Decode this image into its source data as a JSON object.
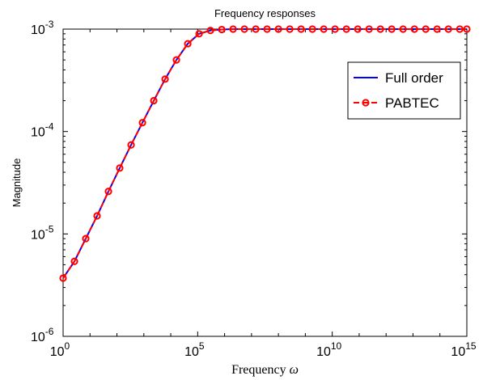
{
  "chart_data": {
    "type": "line",
    "title": "Frequency responses",
    "xlabel": "Frequency",
    "xlabel_symbol": "ω",
    "ylabel": "Magnitude",
    "xscale": "log",
    "yscale": "log",
    "xlim": [
      1,
      1000000000000000.0
    ],
    "ylim": [
      1e-06,
      0.001
    ],
    "x_ticks": [
      {
        "base": "10",
        "exp": "0"
      },
      {
        "base": "10",
        "exp": "5"
      },
      {
        "base": "10",
        "exp": "10"
      },
      {
        "base": "10",
        "exp": "15"
      }
    ],
    "y_ticks": [
      {
        "base": "10",
        "exp": "-6"
      },
      {
        "base": "10",
        "exp": "-5"
      },
      {
        "base": "10",
        "exp": "-4"
      },
      {
        "base": "10",
        "exp": "-3"
      }
    ],
    "grid": false,
    "legend_position": "upper-right",
    "x": [
      1,
      2.64,
      6.95,
      18.3,
      48.3,
      127.0,
      336.0,
      886.0,
      2340.0,
      6160.0,
      16200.0,
      42800.0,
      113000.0,
      298000.0,
      785000.0,
      2070000.0,
      5460000.0,
      14400000.0,
      37900000.0,
      100000000.0,
      264000000.0,
      695000000.0,
      1830000000.0,
      4830000000.0,
      12700000000.0,
      33600000000.0,
      88600000000.0,
      234000000000.0,
      616000000000.0,
      1620000000000.0,
      4280000000000.0,
      11300000000000.0,
      29800000000000.0,
      78500000000000.0,
      207000000000000.0,
      546000000000000.0,
      1000000000000000.0
    ],
    "series": [
      {
        "name": "Full order",
        "color": "#0000ff",
        "style": "solid",
        "y": [
          3.7e-06,
          5.4e-06,
          9e-06,
          1.5e-05,
          2.6e-05,
          4.4e-05,
          7.4e-05,
          0.000122,
          0.0002,
          0.000325,
          0.0005,
          0.00072,
          0.0009,
          0.00097,
          0.00099,
          0.001,
          0.001,
          0.001,
          0.001,
          0.001,
          0.001,
          0.001,
          0.001,
          0.001,
          0.001,
          0.001,
          0.001,
          0.001,
          0.001,
          0.001,
          0.001,
          0.001,
          0.001,
          0.001,
          0.001,
          0.001,
          0.001
        ]
      },
      {
        "name": "PABTEC",
        "color": "#ff0000",
        "style": "dashed",
        "marker": "circle",
        "y": [
          3.7e-06,
          5.4e-06,
          9e-06,
          1.5e-05,
          2.6e-05,
          4.4e-05,
          7.4e-05,
          0.000122,
          0.0002,
          0.000325,
          0.0005,
          0.00072,
          0.0009,
          0.00097,
          0.00099,
          0.001,
          0.001,
          0.001,
          0.001,
          0.001,
          0.001,
          0.001,
          0.001,
          0.001,
          0.001,
          0.001,
          0.001,
          0.001,
          0.001,
          0.001,
          0.001,
          0.001,
          0.001,
          0.001,
          0.001,
          0.001,
          0.001
        ]
      }
    ]
  }
}
